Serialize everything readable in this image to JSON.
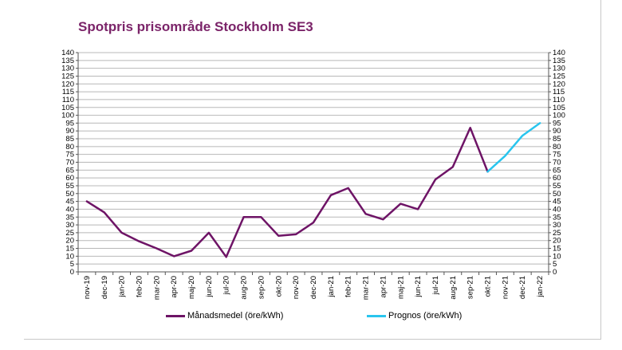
{
  "title": "Spotpris prisområde Stockholm SE3",
  "colors": {
    "title": "#7b2469",
    "grid": "#b8b8b8",
    "axis": "#555555"
  },
  "chart_data": {
    "type": "line",
    "title": "Spotpris prisområde Stockholm SE3",
    "xlabel": "",
    "ylabel": "",
    "ylim": [
      0,
      140
    ],
    "ytick_step": 5,
    "y_axis_both_sides": true,
    "grid": true,
    "legend_position": "bottom",
    "categories": [
      "nov-19",
      "dec-19",
      "jan-20",
      "feb-20",
      "mar-20",
      "apr-20",
      "maj-20",
      "jun-20",
      "jul-20",
      "aug-20",
      "sep-20",
      "okt-20",
      "nov-20",
      "dec-20",
      "jan-21",
      "feb-21",
      "mar-21",
      "apr-21",
      "maj-21",
      "jun-21",
      "jul-21",
      "aug-21",
      "sep-21",
      "okt-21",
      "nov-21",
      "dec-21",
      "jan-22"
    ],
    "series": [
      {
        "name": "Månadsmedel (öre/kWh)",
        "color": "#6e1466",
        "values": [
          45,
          38,
          25,
          19.5,
          15,
          10,
          13.5,
          25,
          9.5,
          35,
          35,
          23,
          24,
          31.5,
          49,
          53.5,
          37,
          33.5,
          43.5,
          40,
          59,
          67,
          92,
          64,
          null,
          null,
          null
        ]
      },
      {
        "name": "Prognos (öre/kWh)",
        "color": "#29c5ee",
        "values": [
          null,
          null,
          null,
          null,
          null,
          null,
          null,
          null,
          null,
          null,
          null,
          null,
          null,
          null,
          null,
          null,
          null,
          null,
          null,
          null,
          null,
          null,
          null,
          64,
          74,
          87,
          95
        ]
      }
    ]
  }
}
